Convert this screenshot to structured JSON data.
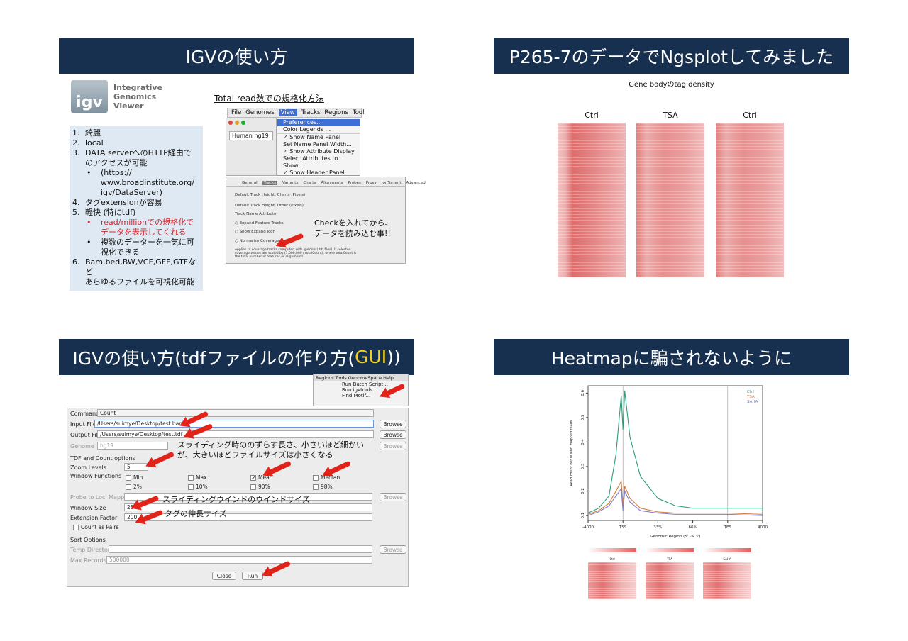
{
  "slide1": {
    "title": "IGVの使い方",
    "logo": {
      "mark": "igv",
      "line1": "Integrative",
      "line2": "Genomics",
      "line3": "Viewer"
    },
    "list": [
      {
        "n": "1.",
        "text": "綺麗"
      },
      {
        "n": "2.",
        "text": "local"
      },
      {
        "n": "3.",
        "text": "DATA serverへのHTTP経由で"
      },
      {
        "n": "",
        "text": "のアクセスが可能"
      },
      {
        "n": "•",
        "text": "(https://",
        "sub": true
      },
      {
        "n": "",
        "text": "www.broadinstitute.org/",
        "sub": true
      },
      {
        "n": "",
        "text": "igv/DataServer)",
        "sub": true
      },
      {
        "n": "4.",
        "text": "タグextensionが容易"
      },
      {
        "n": "5.",
        "text": "軽快 (特にtdf)"
      },
      {
        "n": "•",
        "text": "read/millionでの規格化で",
        "sub": true,
        "red": true
      },
      {
        "n": "",
        "text": "データを表示してくれる",
        "sub": true,
        "red": true
      },
      {
        "n": "•",
        "text": "複数のデーターを一気に可",
        "sub": true
      },
      {
        "n": "",
        "text": "視化できる",
        "sub": true
      },
      {
        "n": "6.",
        "text": "Bam,bed,BW,VCF,GFF,GTFなど"
      },
      {
        "n": "",
        "text": "あらゆるファイルを可視化可能"
      }
    ],
    "normalize_heading": "Total read数での規格化方法",
    "menu_bar": [
      "File",
      "Genomes",
      "View",
      "Tracks",
      "Regions",
      "Tool"
    ],
    "genome_select": "Human hg19",
    "view_menu": [
      "Preferences...",
      "Color Legends ...",
      "✓ Show Name Panel",
      "Set Name Panel Width...",
      "✓ Show Attribute Display",
      "Select Attributes to Show...",
      "✓ Show Header Panel"
    ],
    "prefs_tabs": [
      "General",
      "Tracks",
      "Variants",
      "Charts",
      "Alignments",
      "Probes",
      "Proxy",
      "IonTorrent",
      "Advanced"
    ],
    "prefs_rows": [
      "Default Track Height, Charts (Pixels)",
      "Default Track Height, Other (Pixels)",
      "Track Name Attribute",
      "Expand Feature Tracks",
      "Show Expand Icon",
      "Normalize Coverage Data"
    ],
    "prefs_note": "Applies to coverage tracks computed with igvtools (.tdf files). If selected coverage values are scaled by (1,000,000 / totalCount), where totalCount is the total number of features or alignments.",
    "callout_red": "Checkを入れてから、",
    "callout_black": "データを読み込む事!!"
  },
  "slide2": {
    "title": "P265-7のデータでNgsplotしてみました",
    "subtitle": "Gene bodyのtag density",
    "labels": [
      "Ctrl",
      "TSA",
      "Ctrl"
    ]
  },
  "slide3": {
    "title_pre": "IGVの使い方(tdfファイルの作り方(",
    "title_gui": "GUI",
    "title_post": "))",
    "menu": {
      "bar": "Regions  Tools  GenomeSpace  Help",
      "items": [
        "Run Batch Script...",
        "Run igvtools...",
        "Find Motif..."
      ]
    },
    "command_label": "Command",
    "command_value": "Count",
    "input_label": "Input File",
    "input_value": "/Users/suimye/Desktop/test.bam",
    "output_label": "Output File",
    "output_value": "/Users/suimye/Desktop/test.tdf",
    "genome_label": "Genome",
    "genome_value": "hg19",
    "browse": "Browse",
    "tdf_section": "TDF and Count options",
    "zoom_label": "Zoom Levels",
    "zoom_value": "5",
    "window_functions_label": "Window Functions",
    "functions": [
      "Min",
      "Max",
      "Mean",
      "Median",
      "2%",
      "10%",
      "90%",
      "98%"
    ],
    "probe_label": "Probe to Loci Mapping",
    "window_size_label": "Window Size",
    "window_size_value": "25",
    "extension_label": "Extension Factor",
    "extension_value": "200",
    "count_pairs": "Count as Pairs",
    "sort_section": "Sort Options",
    "temp_label": "Temp Directory",
    "max_records_label": "Max Records",
    "max_records_value": "500000",
    "close": "Close",
    "run": "Run",
    "note_shift_1": "スライディング時ののずらす長さ、小さいほど細かい",
    "note_shift_2": "が、大きいほどファイルサイズは小さくなる",
    "note_window": "スライディングウインドのウインドサイズ",
    "note_ext": "タグの伸長サイズ"
  },
  "slide4": {
    "title": "Heatmapに騙されないように",
    "chart_data": {
      "type": "line",
      "title": "",
      "xlabel": "Genomic Region (5' -> 3')",
      "ylabel": "Read count Per Million mapped reads",
      "x_ticks": [
        "-4000",
        "TSS",
        "33%",
        "66%",
        "TES",
        "4000"
      ],
      "y_ticks": [
        "0.1",
        "0.2",
        "0.3",
        "0.4",
        "0.5",
        "0.6"
      ],
      "ylim": [
        0.08,
        0.63
      ],
      "legend": "top-right",
      "x": [
        0,
        0.3,
        0.6,
        0.8,
        0.95,
        1.0,
        1.05,
        1.2,
        1.5,
        2,
        2.5,
        3,
        4,
        5
      ],
      "series": [
        {
          "name": "Ctrl",
          "color": "#2e9e7a",
          "values": [
            0.11,
            0.13,
            0.18,
            0.35,
            0.59,
            0.45,
            0.61,
            0.42,
            0.26,
            0.17,
            0.14,
            0.13,
            0.13,
            0.13
          ]
        },
        {
          "name": "TSA",
          "color": "#d77b3a",
          "values": [
            0.105,
            0.12,
            0.15,
            0.2,
            0.24,
            0.14,
            0.22,
            0.17,
            0.13,
            0.115,
            0.11,
            0.11,
            0.11,
            0.105
          ]
        },
        {
          "name": "SAHA",
          "color": "#7f7fc8",
          "values": [
            0.1,
            0.115,
            0.14,
            0.18,
            0.21,
            0.12,
            0.2,
            0.155,
            0.12,
            0.11,
            0.105,
            0.105,
            0.105,
            0.1
          ]
        }
      ]
    },
    "heat_labels": [
      "Ctrl",
      "TSA",
      "SAHA"
    ]
  }
}
